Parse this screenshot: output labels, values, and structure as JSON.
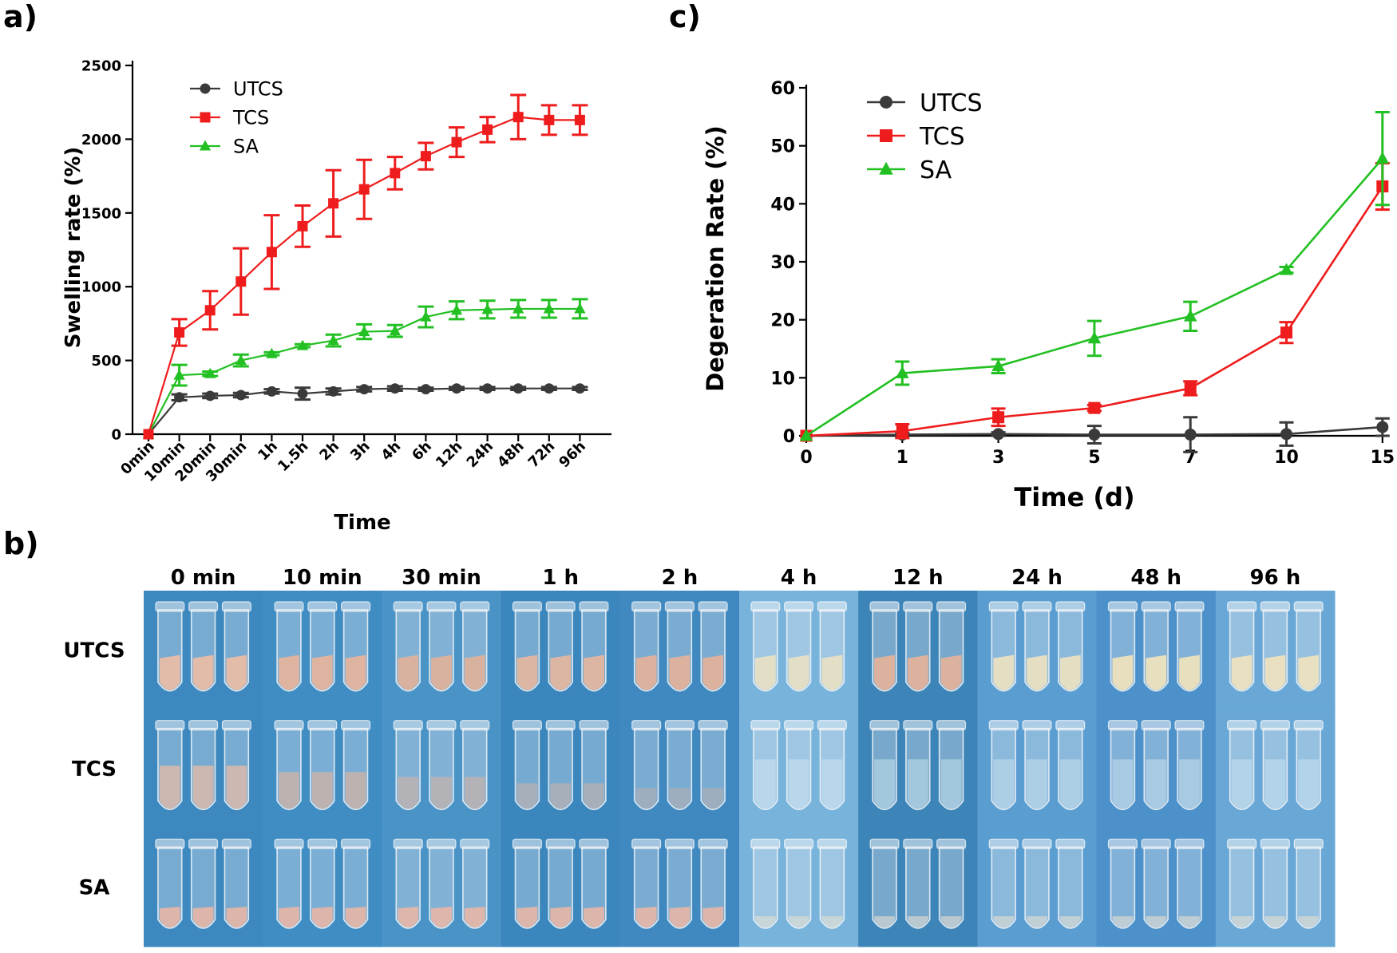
{
  "panel_labels": {
    "a": "a)",
    "b": "b)",
    "c": "c)"
  },
  "colors": {
    "UTCS": "#3a3a3a",
    "TCS": "#ee1c1c",
    "SA": "#22c022",
    "photo_bg": "#3f8fc4"
  },
  "chart_data": [
    {
      "id": "a",
      "type": "line",
      "title": "",
      "xlabel": "Time",
      "ylabel": "Swelling rate (%)",
      "ylim": [
        0,
        2500
      ],
      "yticks": [
        "0",
        "500",
        "1000",
        "1500",
        "2000",
        "2500"
      ],
      "categories": [
        "0min",
        "10min",
        "20min",
        "30min",
        "1h",
        "1.5h",
        "2h",
        "3h",
        "4h",
        "6h",
        "12h",
        "24h",
        "48h",
        "72h",
        "96h"
      ],
      "legend_position": "top-left",
      "series": [
        {
          "name": "UTCS",
          "marker": "circle",
          "values": [
            0,
            250,
            260,
            265,
            290,
            275,
            290,
            305,
            310,
            305,
            310,
            310,
            310,
            310,
            310
          ],
          "errors": [
            0,
            20,
            15,
            15,
            15,
            40,
            20,
            15,
            15,
            10,
            10,
            10,
            10,
            10,
            10
          ]
        },
        {
          "name": "TCS",
          "marker": "square",
          "values": [
            0,
            690,
            840,
            1035,
            1235,
            1410,
            1565,
            1660,
            1770,
            1885,
            1980,
            2065,
            2150,
            2130,
            2130
          ],
          "errors": [
            0,
            90,
            130,
            225,
            250,
            140,
            225,
            200,
            110,
            90,
            100,
            85,
            150,
            100,
            100
          ]
        },
        {
          "name": "SA",
          "marker": "triangle",
          "values": [
            0,
            400,
            410,
            500,
            545,
            600,
            635,
            695,
            700,
            795,
            840,
            845,
            850,
            850,
            850
          ],
          "errors": [
            0,
            70,
            15,
            40,
            10,
            10,
            40,
            50,
            40,
            70,
            60,
            60,
            60,
            60,
            65
          ]
        }
      ]
    },
    {
      "id": "c",
      "type": "line",
      "title": "",
      "xlabel": "Time (d)",
      "ylabel": "Degeration Rate (%)",
      "ylim": [
        0,
        60
      ],
      "yticks": [
        "0",
        "10",
        "20",
        "30",
        "40",
        "50",
        "60"
      ],
      "categories": [
        "0",
        "1",
        "3",
        "5",
        "7",
        "10",
        "15"
      ],
      "legend_position": "top-left",
      "series": [
        {
          "name": "UTCS",
          "marker": "circle",
          "values": [
            0,
            0.2,
            0.3,
            0.2,
            0.2,
            0.3,
            1.5
          ],
          "errors": [
            0,
            0.3,
            0.3,
            1.5,
            3,
            2,
            1.5
          ]
        },
        {
          "name": "TCS",
          "marker": "square",
          "values": [
            0,
            0.8,
            3.2,
            4.8,
            8.2,
            17.8,
            43
          ],
          "errors": [
            0,
            1.2,
            1.5,
            0.5,
            1.2,
            1.8,
            4
          ]
        },
        {
          "name": "SA",
          "marker": "triangle",
          "values": [
            0,
            10.8,
            12,
            16.8,
            20.6,
            28.6,
            47.8
          ],
          "errors": [
            0,
            2,
            1.2,
            3,
            2.5,
            0.5,
            8
          ]
        }
      ]
    }
  ],
  "photo_grid": {
    "time_headers": [
      "0 min",
      "10 min",
      "30 min",
      "1 h",
      "2 h",
      "4 h",
      "12 h",
      "24 h",
      "48 h",
      "96 h"
    ],
    "rows": [
      "UTCS",
      "TCS",
      "SA"
    ],
    "description_contents": {
      "UTCS": "solid",
      "TCS": "dissolving",
      "SA": "solid"
    }
  }
}
